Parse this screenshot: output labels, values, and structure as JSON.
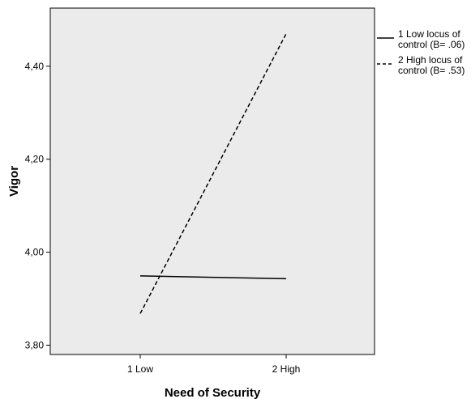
{
  "chart_data": {
    "type": "line",
    "xlabel": "Need of Security",
    "ylabel": "Vigor",
    "categories": [
      "1 Low",
      "2 High"
    ],
    "ylim": [
      3.78,
      4.525
    ],
    "yticks": [
      3.8,
      4.0,
      4.2,
      4.4
    ],
    "ytick_labels": [
      "3,80",
      "4,00",
      "4,20",
      "4,40"
    ],
    "grid": false,
    "legend_position": "right",
    "plot_background": "#ebebeb",
    "series": [
      {
        "name_lines": [
          "1 Low locus of",
          "control (B= .06)"
        ],
        "values": [
          3.949,
          3.943
        ],
        "line_style": "solid",
        "color": "#000000"
      },
      {
        "name_lines": [
          "2 High locus of",
          "control (B= .53)"
        ],
        "values": [
          3.868,
          4.47
        ],
        "line_style": "dashed",
        "color": "#000000"
      }
    ]
  }
}
